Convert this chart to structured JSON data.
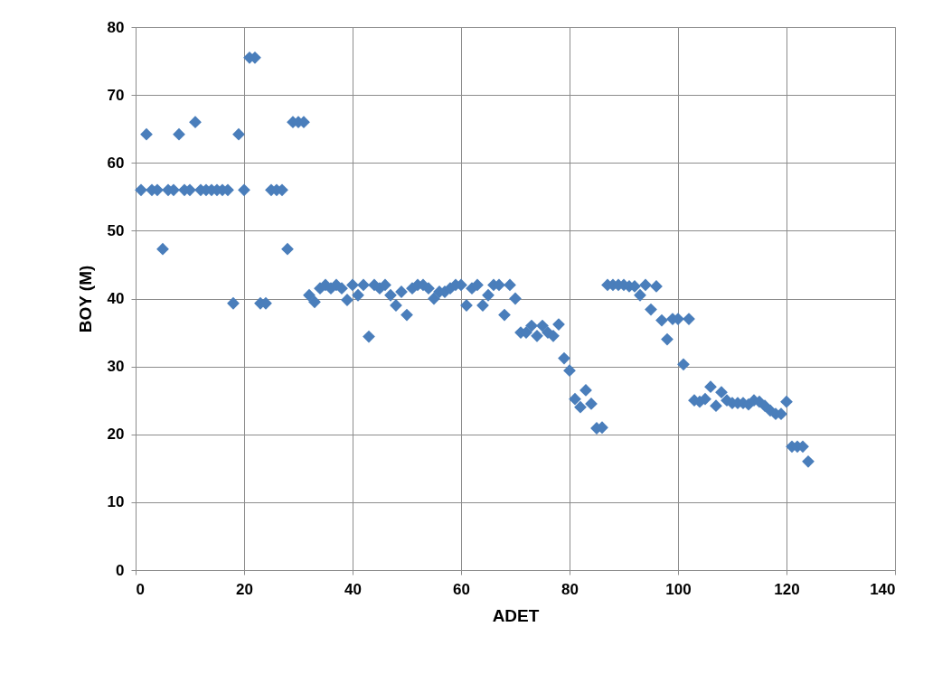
{
  "chart_data": {
    "type": "scatter",
    "xlabel": "ADET",
    "ylabel": "BOY (M)",
    "xlim": [
      0,
      140
    ],
    "xticks": [
      0,
      20,
      40,
      60,
      80,
      100,
      120,
      140
    ],
    "ylim": [
      0,
      80
    ],
    "yticks": [
      0,
      10,
      20,
      30,
      40,
      50,
      60,
      70,
      80
    ],
    "grid": true,
    "marker": "diamond",
    "series": [
      {
        "color": "#4a7ebb",
        "x": [
          1,
          2,
          3,
          4,
          5,
          6,
          7,
          8,
          9,
          10,
          11,
          12,
          13,
          14,
          15,
          16,
          17,
          18,
          19,
          20,
          21,
          22,
          23,
          24,
          25,
          26,
          27,
          28,
          29,
          30,
          31,
          32,
          33,
          34,
          35,
          36,
          37,
          38,
          39,
          40,
          41,
          42,
          43,
          44,
          45,
          46,
          47,
          48,
          49,
          50,
          51,
          52,
          53,
          54,
          55,
          56,
          57,
          58,
          59,
          60,
          61,
          62,
          63,
          64,
          65,
          66,
          67,
          68,
          69,
          70,
          71,
          72,
          73,
          74,
          75,
          76,
          77,
          78,
          79,
          80,
          81,
          82,
          83,
          84,
          85,
          86,
          87,
          88,
          89,
          90,
          91,
          92,
          93,
          94,
          95,
          96,
          97,
          98,
          99,
          100,
          101,
          102,
          103,
          104,
          105,
          106,
          107,
          108,
          109,
          110,
          111,
          112,
          113,
          114,
          115,
          116,
          117,
          118,
          119,
          120,
          121,
          122,
          123,
          124
        ],
        "values": [
          56,
          64.2,
          56,
          56,
          47.3,
          56,
          56,
          64.2,
          56,
          56,
          66,
          56,
          56,
          56,
          56,
          56,
          56,
          39.3,
          64.2,
          56,
          75.5,
          75.5,
          39.3,
          39.3,
          56,
          56,
          56,
          47.3,
          66,
          66,
          66,
          40.5,
          39.5,
          41.5,
          42,
          41.5,
          42,
          41.5,
          39.8,
          42,
          40.5,
          42,
          34.4,
          42,
          41.5,
          42,
          40.5,
          39,
          41,
          37.6,
          41.5,
          42,
          42,
          41.5,
          40,
          41,
          41,
          41.5,
          42,
          42,
          39,
          41.5,
          42,
          39,
          40.5,
          42,
          42,
          37.6,
          42,
          40,
          35,
          35,
          36,
          34.5,
          36,
          35,
          34.5,
          36.2,
          31.2,
          29.4,
          25.2,
          24,
          26.5,
          24.5,
          20.9,
          21,
          42,
          42,
          42,
          42,
          41.8,
          41.8,
          40.5,
          42,
          38.4,
          41.8,
          36.8,
          34,
          37,
          37,
          30.3,
          37,
          25,
          24.8,
          25.2,
          27,
          24.2,
          26.2,
          25,
          24.6,
          24.6,
          24.6,
          24.4,
          25,
          24.8,
          24.2,
          23.5,
          23,
          23,
          24.8,
          18.2,
          18.2,
          18.2,
          16
        ]
      }
    ]
  }
}
